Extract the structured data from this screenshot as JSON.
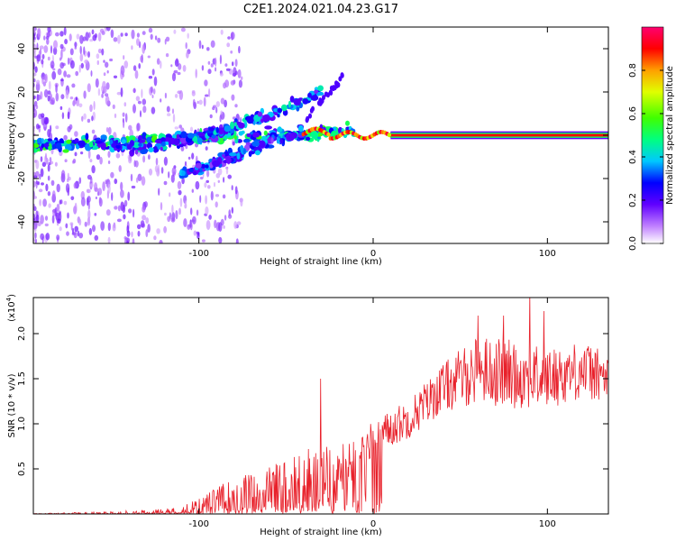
{
  "title": "C2E1.2024.021.04.23.G17",
  "colors": {
    "snr_line": "#e8202a",
    "spectro_floor": "#ffffff",
    "frame": "#000000"
  },
  "chart_data": [
    {
      "type": "heatmap",
      "name": "spectrogram",
      "xlabel": "Height of straight line (km)",
      "ylabel": "Frequency (Hz)",
      "xlim": [
        -195,
        135
      ],
      "ylim": [
        -50,
        50
      ],
      "xticks": [
        -100,
        0,
        100
      ],
      "yticks": [
        -40,
        -20,
        0,
        20,
        40
      ],
      "colorbar": {
        "label": "Normalized spectral amplitude",
        "range": [
          0.0,
          1.0
        ],
        "ticks": [
          "0.0",
          "0.2",
          "0.4",
          "0.6",
          "0.8"
        ],
        "colormap": "rainbow (white-violet-blue-cyan-green-yellow-red-magenta)"
      },
      "ridges": [
        {
          "x_range": [
            -195,
            -10
          ],
          "freq_start": -5,
          "freq_end": 2,
          "amplitude": 0.45
        },
        {
          "x_range": [
            -150,
            -30
          ],
          "freq_start": -6,
          "freq_end": 20,
          "amplitude": 0.35
        },
        {
          "x_range": [
            -110,
            -40
          ],
          "freq_start": -18,
          "freq_end": 2,
          "amplitude": 0.3
        },
        {
          "x_range": [
            10,
            135
          ],
          "freq_start": 0,
          "freq_end": 0,
          "amplitude": 1.0
        }
      ]
    },
    {
      "type": "line",
      "name": "snr",
      "xlabel": "Height of straight line (km)",
      "ylabel": "SNR (10 * v/v)",
      "scale_label": "(x10",
      "scale_exp": "4",
      "xlim": [
        -195,
        135
      ],
      "ylim": [
        0,
        24000
      ],
      "xticks": [
        -100,
        0,
        100
      ],
      "yticks": [
        "0.5",
        "1.0",
        "1.5",
        "2.0"
      ],
      "ytick_values": [
        5000,
        10000,
        15000,
        20000
      ],
      "envelope": {
        "x": [
          -195,
          -150,
          -120,
          -100,
          -80,
          -60,
          -40,
          -30,
          -20,
          -10,
          0,
          20,
          40,
          60,
          80,
          100,
          120,
          135
        ],
        "mean": [
          0,
          100,
          300,
          800,
          2500,
          3000,
          3500,
          4000,
          5000,
          6000,
          8500,
          10500,
          14000,
          16000,
          15500,
          15000,
          16000,
          15000
        ],
        "noise": [
          50,
          150,
          250,
          800,
          1500,
          2000,
          3500,
          3000,
          2500,
          2000,
          1800,
          2000,
          2500,
          3500,
          3500,
          3000,
          3000,
          2500
        ]
      },
      "peaks": [
        {
          "x": 60,
          "y": 22000
        },
        {
          "x": 75,
          "y": 22000
        },
        {
          "x": 90,
          "y": 24500
        },
        {
          "x": 98,
          "y": 22500
        },
        {
          "x": -30,
          "y": 15000
        }
      ]
    }
  ]
}
